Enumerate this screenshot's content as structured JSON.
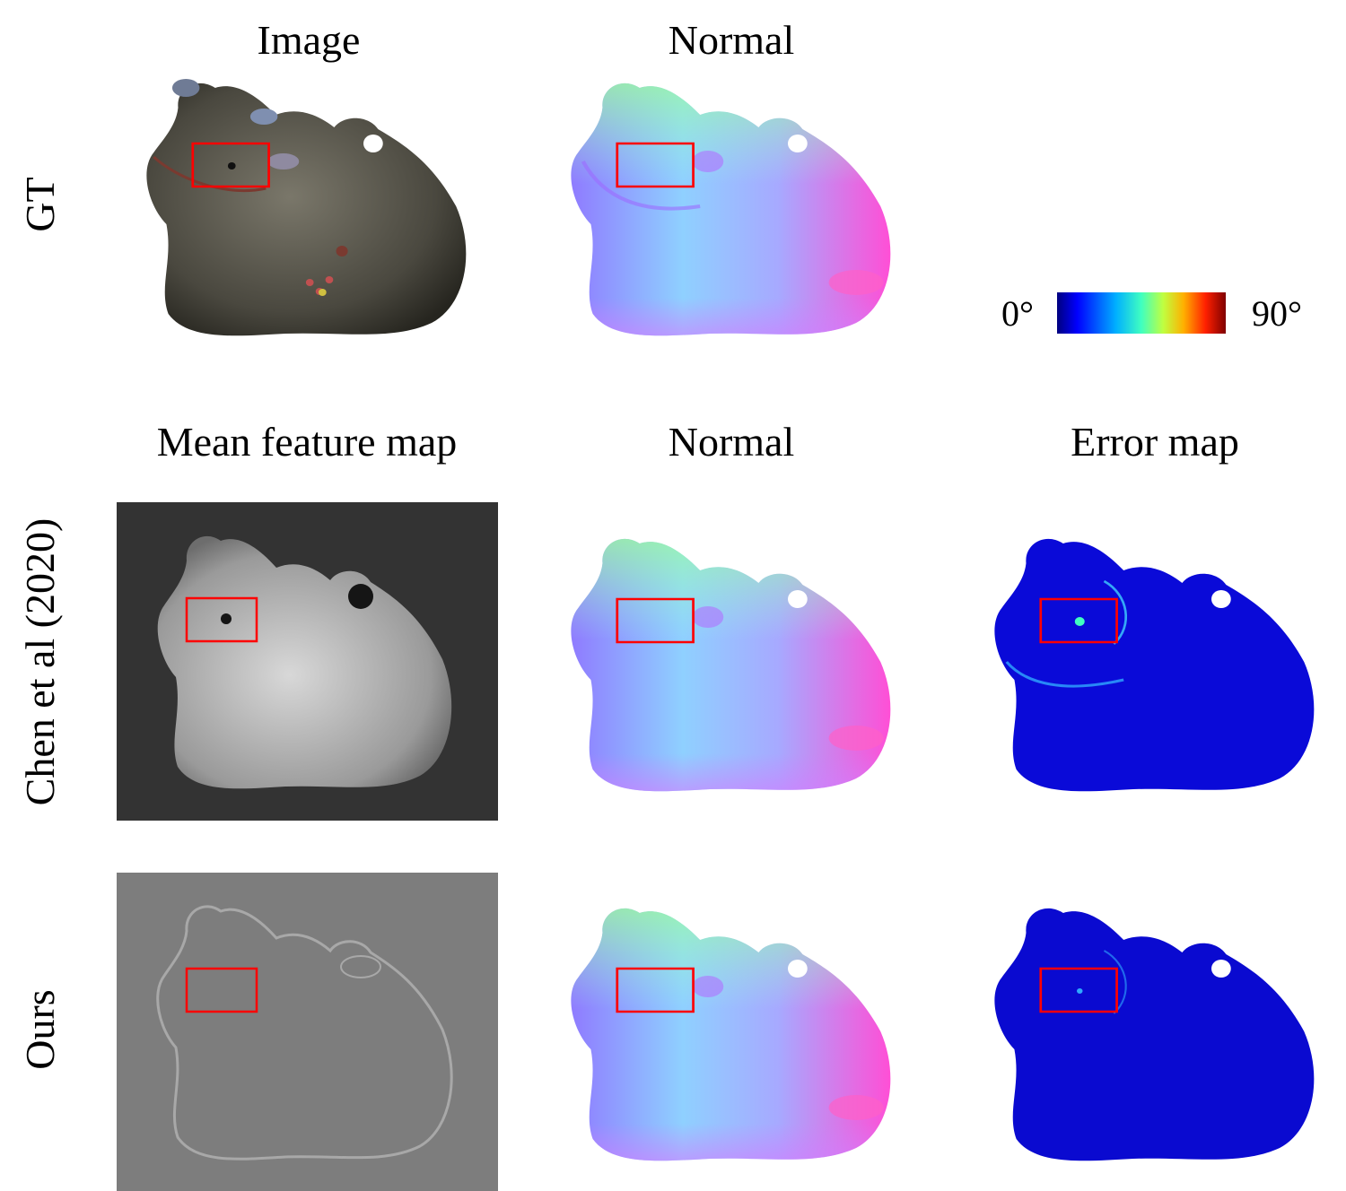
{
  "headers": {
    "image": "Image",
    "normal_top": "Normal",
    "mean_feature_map": "Mean feature map",
    "normal_mid": "Normal",
    "error_map": "Error map"
  },
  "rows": {
    "gt": "GT",
    "chen": "Chen et al (2020)",
    "ours": "Ours"
  },
  "colorbar": {
    "min_label": "0°",
    "max_label": "90°",
    "colors": [
      "#00007f",
      "#0000ff",
      "#00b0ff",
      "#40ffc0",
      "#c0ff40",
      "#ffb000",
      "#ff2000",
      "#7f0000"
    ]
  },
  "highlight_color": "#ff0000"
}
